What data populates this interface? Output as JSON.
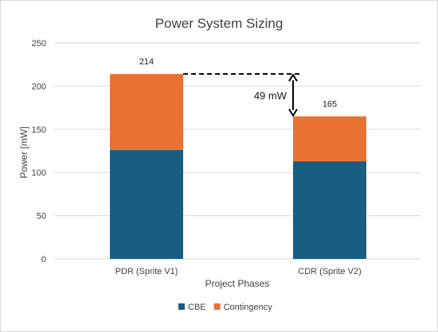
{
  "chart_data": {
    "type": "bar",
    "stacked": true,
    "title": "Power System Sizing",
    "xlabel": "Project Phases",
    "ylabel": "Power [mW]",
    "ylim": [
      0,
      250
    ],
    "yticks": [
      0,
      50,
      100,
      150,
      200,
      250
    ],
    "grid": true,
    "legend_position": "bottom",
    "categories": [
      "PDR (Sprite V1)",
      "CDR (Sprite V2)"
    ],
    "series": [
      {
        "name": "CBE",
        "color": "#175E81",
        "values": [
          126,
          113
        ]
      },
      {
        "name": "Contingency",
        "color": "#E97132",
        "values": [
          88,
          52
        ]
      }
    ],
    "totals": [
      "214",
      "165"
    ],
    "annotation": {
      "text": "49 mW",
      "from_category": 0,
      "to_category": 1,
      "from_value": 214,
      "to_value": 165
    }
  }
}
